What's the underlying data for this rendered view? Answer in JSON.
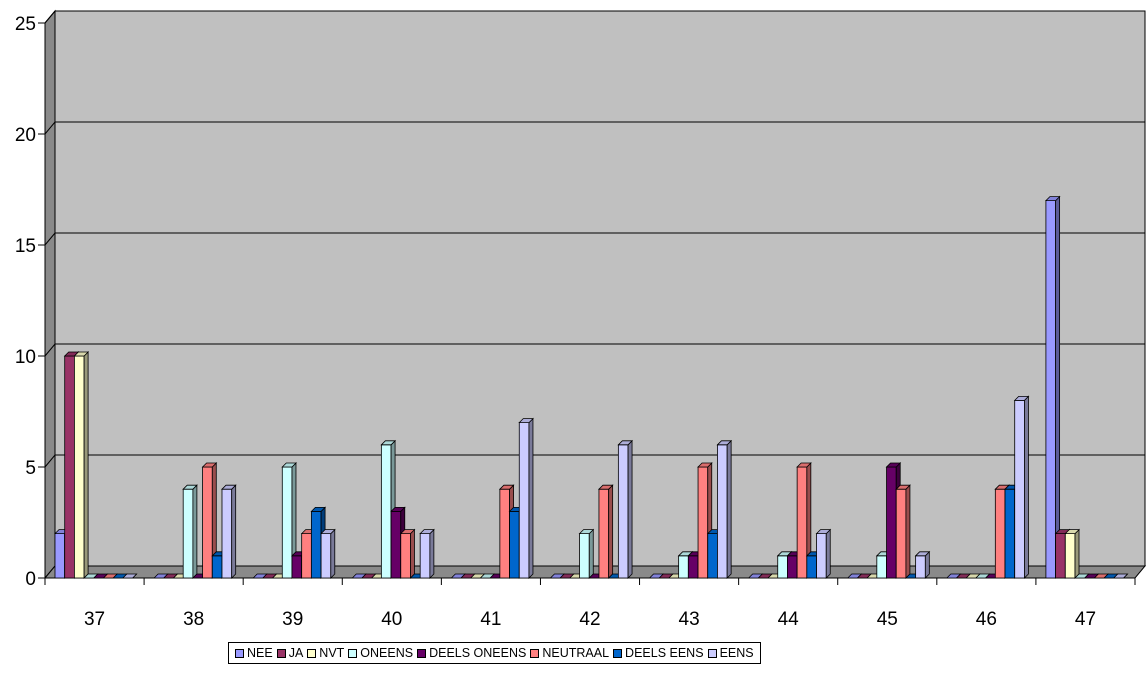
{
  "chart_data": {
    "type": "bar",
    "categories": [
      "37",
      "38",
      "39",
      "40",
      "41",
      "42",
      "43",
      "44",
      "45",
      "46",
      "47"
    ],
    "series": [
      {
        "name": "NEE",
        "color": "#9999ff",
        "values": [
          2,
          0,
          0,
          0,
          0,
          0,
          0,
          0,
          0,
          0,
          17
        ]
      },
      {
        "name": "JA",
        "color": "#993366",
        "values": [
          10,
          0,
          0,
          0,
          0,
          0,
          0,
          0,
          0,
          0,
          2
        ]
      },
      {
        "name": "NVT",
        "color": "#ffffcc",
        "values": [
          10,
          0,
          0,
          0,
          0,
          0,
          0,
          0,
          0,
          0,
          2
        ]
      },
      {
        "name": "ONEENS",
        "color": "#ccffff",
        "values": [
          0,
          4,
          5,
          6,
          0,
          2,
          1,
          1,
          1,
          0,
          0
        ]
      },
      {
        "name": "DEELS ONEENS",
        "color": "#660066",
        "values": [
          0,
          0,
          1,
          3,
          0,
          0,
          1,
          1,
          5,
          0,
          0
        ]
      },
      {
        "name": "NEUTRAAL",
        "color": "#ff8080",
        "values": [
          0,
          5,
          2,
          2,
          4,
          4,
          5,
          5,
          4,
          4,
          0
        ]
      },
      {
        "name": "DEELS EENS",
        "color": "#0066cc",
        "values": [
          0,
          1,
          3,
          0,
          3,
          0,
          2,
          1,
          0,
          4,
          0
        ]
      },
      {
        "name": "EENS",
        "color": "#ccccff",
        "values": [
          0,
          4,
          2,
          2,
          7,
          6,
          6,
          2,
          1,
          8,
          0
        ]
      }
    ],
    "ylim": [
      0,
      25
    ],
    "yticks": [
      0,
      5,
      10,
      15,
      20,
      25
    ],
    "grid": true,
    "plot_background": "#c0c0c0",
    "legend_position": "bottom"
  }
}
